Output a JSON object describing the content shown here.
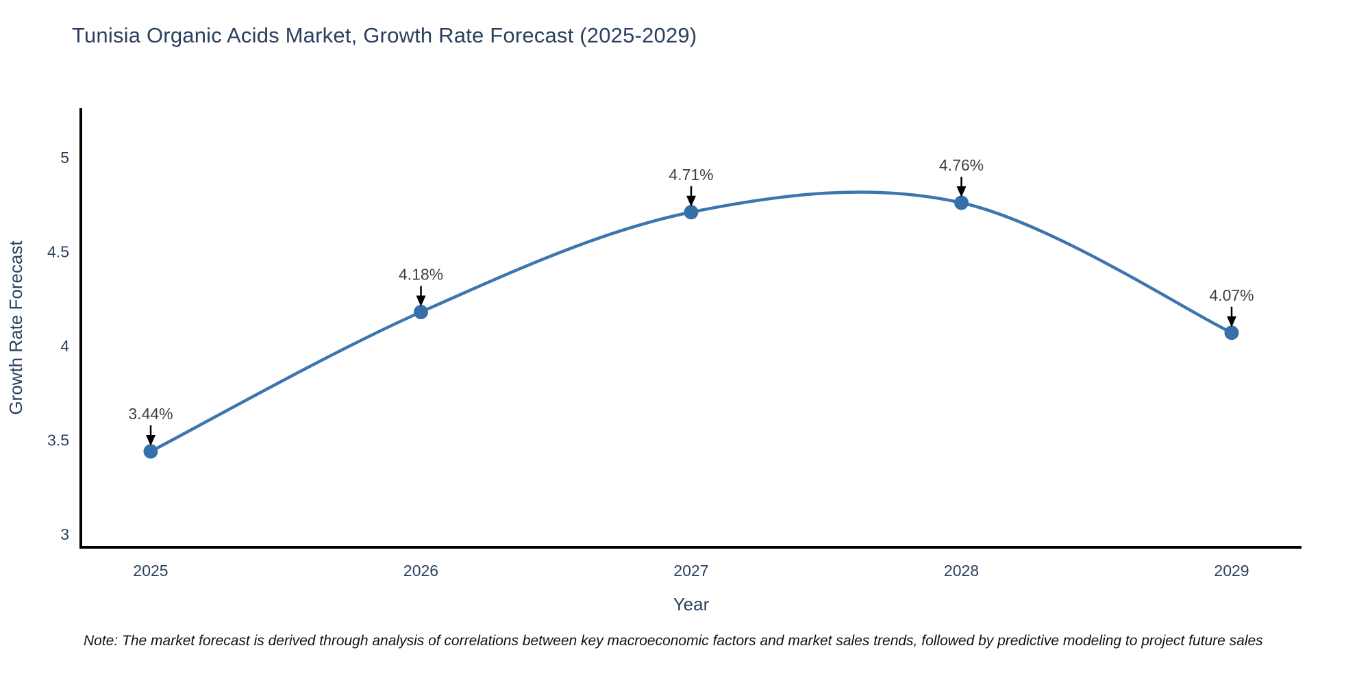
{
  "note": "Note: The market forecast is derived through analysis of correlations between key macroeconomic factors and market sales trends, followed by predictive modeling to project future sales",
  "chart_data": {
    "type": "line",
    "title": "Tunisia Organic Acids Market, Growth Rate Forecast (2025-2029)",
    "xlabel": "Year",
    "ylabel": "Growth Rate Forecast",
    "x": [
      2025,
      2026,
      2027,
      2028,
      2029
    ],
    "y": [
      3.44,
      4.18,
      4.71,
      4.76,
      4.07
    ],
    "point_labels": [
      "3.44%",
      "4.18%",
      "4.71%",
      "4.76%",
      "4.07%"
    ],
    "xticks": [
      "2025",
      "2026",
      "2027",
      "2028",
      "2029"
    ],
    "yticks": [
      3,
      3.5,
      4,
      4.5,
      5
    ],
    "ylim": [
      2.92,
      5.26
    ],
    "line_shape": "spline",
    "grid": false,
    "legend_position": "none",
    "colors": {
      "line": "#3d76ae",
      "marker": "#3570a9",
      "axis": "#000000",
      "font": "#2a3f5f",
      "annotation_text": "#404040",
      "arrow": "#000000"
    }
  }
}
